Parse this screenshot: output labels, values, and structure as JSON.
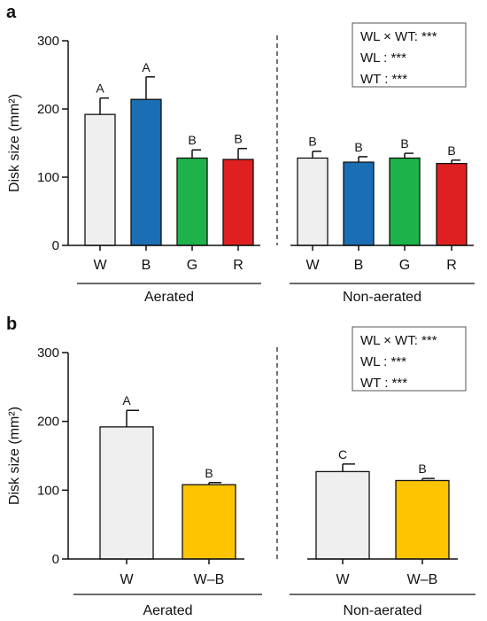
{
  "chart_data": [
    {
      "type": "bar",
      "panel": "a",
      "ylabel": "Disk size (mm²)",
      "ylim": [
        0,
        300
      ],
      "yticks": [
        0,
        100,
        200,
        300
      ],
      "groups": [
        {
          "name": "Aerated",
          "categories": [
            "W",
            "B",
            "G",
            "R"
          ],
          "values": [
            192,
            214,
            128,
            126
          ],
          "errors": [
            24,
            33,
            12,
            16
          ],
          "letters": [
            "A",
            "A",
            "B",
            "B"
          ]
        },
        {
          "name": "Non-aerated",
          "categories": [
            "W",
            "B",
            "G",
            "R"
          ],
          "values": [
            128,
            122,
            128,
            120
          ],
          "errors": [
            10,
            8,
            7,
            5
          ],
          "letters": [
            "B",
            "B",
            "B",
            "B"
          ]
        }
      ],
      "bar_colors": [
        "#efefef",
        "#1a6fb4",
        "#1db34a",
        "#e02020"
      ],
      "stats": [
        "WL × WT: ***",
        "WL : ***",
        "WT : ***"
      ]
    },
    {
      "type": "bar",
      "panel": "b",
      "ylabel": "Disk size (mm²)",
      "ylim": [
        0,
        300
      ],
      "yticks": [
        0,
        100,
        200,
        300
      ],
      "groups": [
        {
          "name": "Aerated",
          "categories": [
            "W",
            "W–B"
          ],
          "values": [
            192,
            108
          ],
          "errors": [
            24,
            3
          ],
          "letters": [
            "A",
            "B"
          ]
        },
        {
          "name": "Non-aerated",
          "categories": [
            "W",
            "W–B"
          ],
          "values": [
            127,
            114
          ],
          "errors": [
            11,
            3
          ],
          "letters": [
            "C",
            "B"
          ]
        }
      ],
      "bar_colors": [
        "#efefef",
        "#ffc400"
      ],
      "stats": [
        "WL × WT: ***",
        "WL : ***",
        "WT : ***"
      ]
    }
  ]
}
